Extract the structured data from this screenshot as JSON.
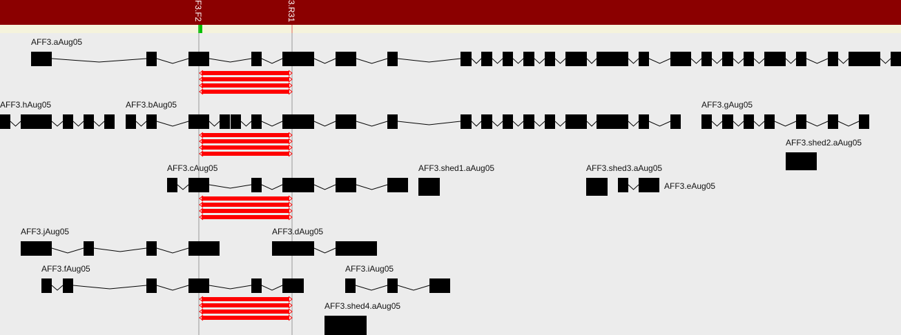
{
  "header": {
    "background": "#8b0000",
    "band": "#f5f3dc",
    "marker_color": "#00c000"
  },
  "probes": [
    {
      "label": "F3.F2",
      "line_color": "#6cc86c"
    },
    {
      "label": "3.R31",
      "line_color": "#e06060"
    }
  ],
  "colors": {
    "exon": "#000000",
    "probe_pair": "#ff0000",
    "background": "#ececec"
  },
  "genes": [
    {
      "name": "AFF3.aAug05"
    },
    {
      "name": "AFF3.hAug05"
    },
    {
      "name": "AFF3.bAug05"
    },
    {
      "name": "AFF3.gAug05"
    },
    {
      "name": "AFF3.shed2.aAug05"
    },
    {
      "name": "AFF3.cAug05"
    },
    {
      "name": "AFF3.shed1.aAug05"
    },
    {
      "name": "AFF3.shed3.aAug05"
    },
    {
      "name": "AFF3.eAug05"
    },
    {
      "name": "AFF3.jAug05"
    },
    {
      "name": "AFF3.dAug05"
    },
    {
      "name": "AFF3.fAug05"
    },
    {
      "name": "AFF3.iAug05"
    },
    {
      "name": "AFF3.shed4.aAug05"
    }
  ]
}
